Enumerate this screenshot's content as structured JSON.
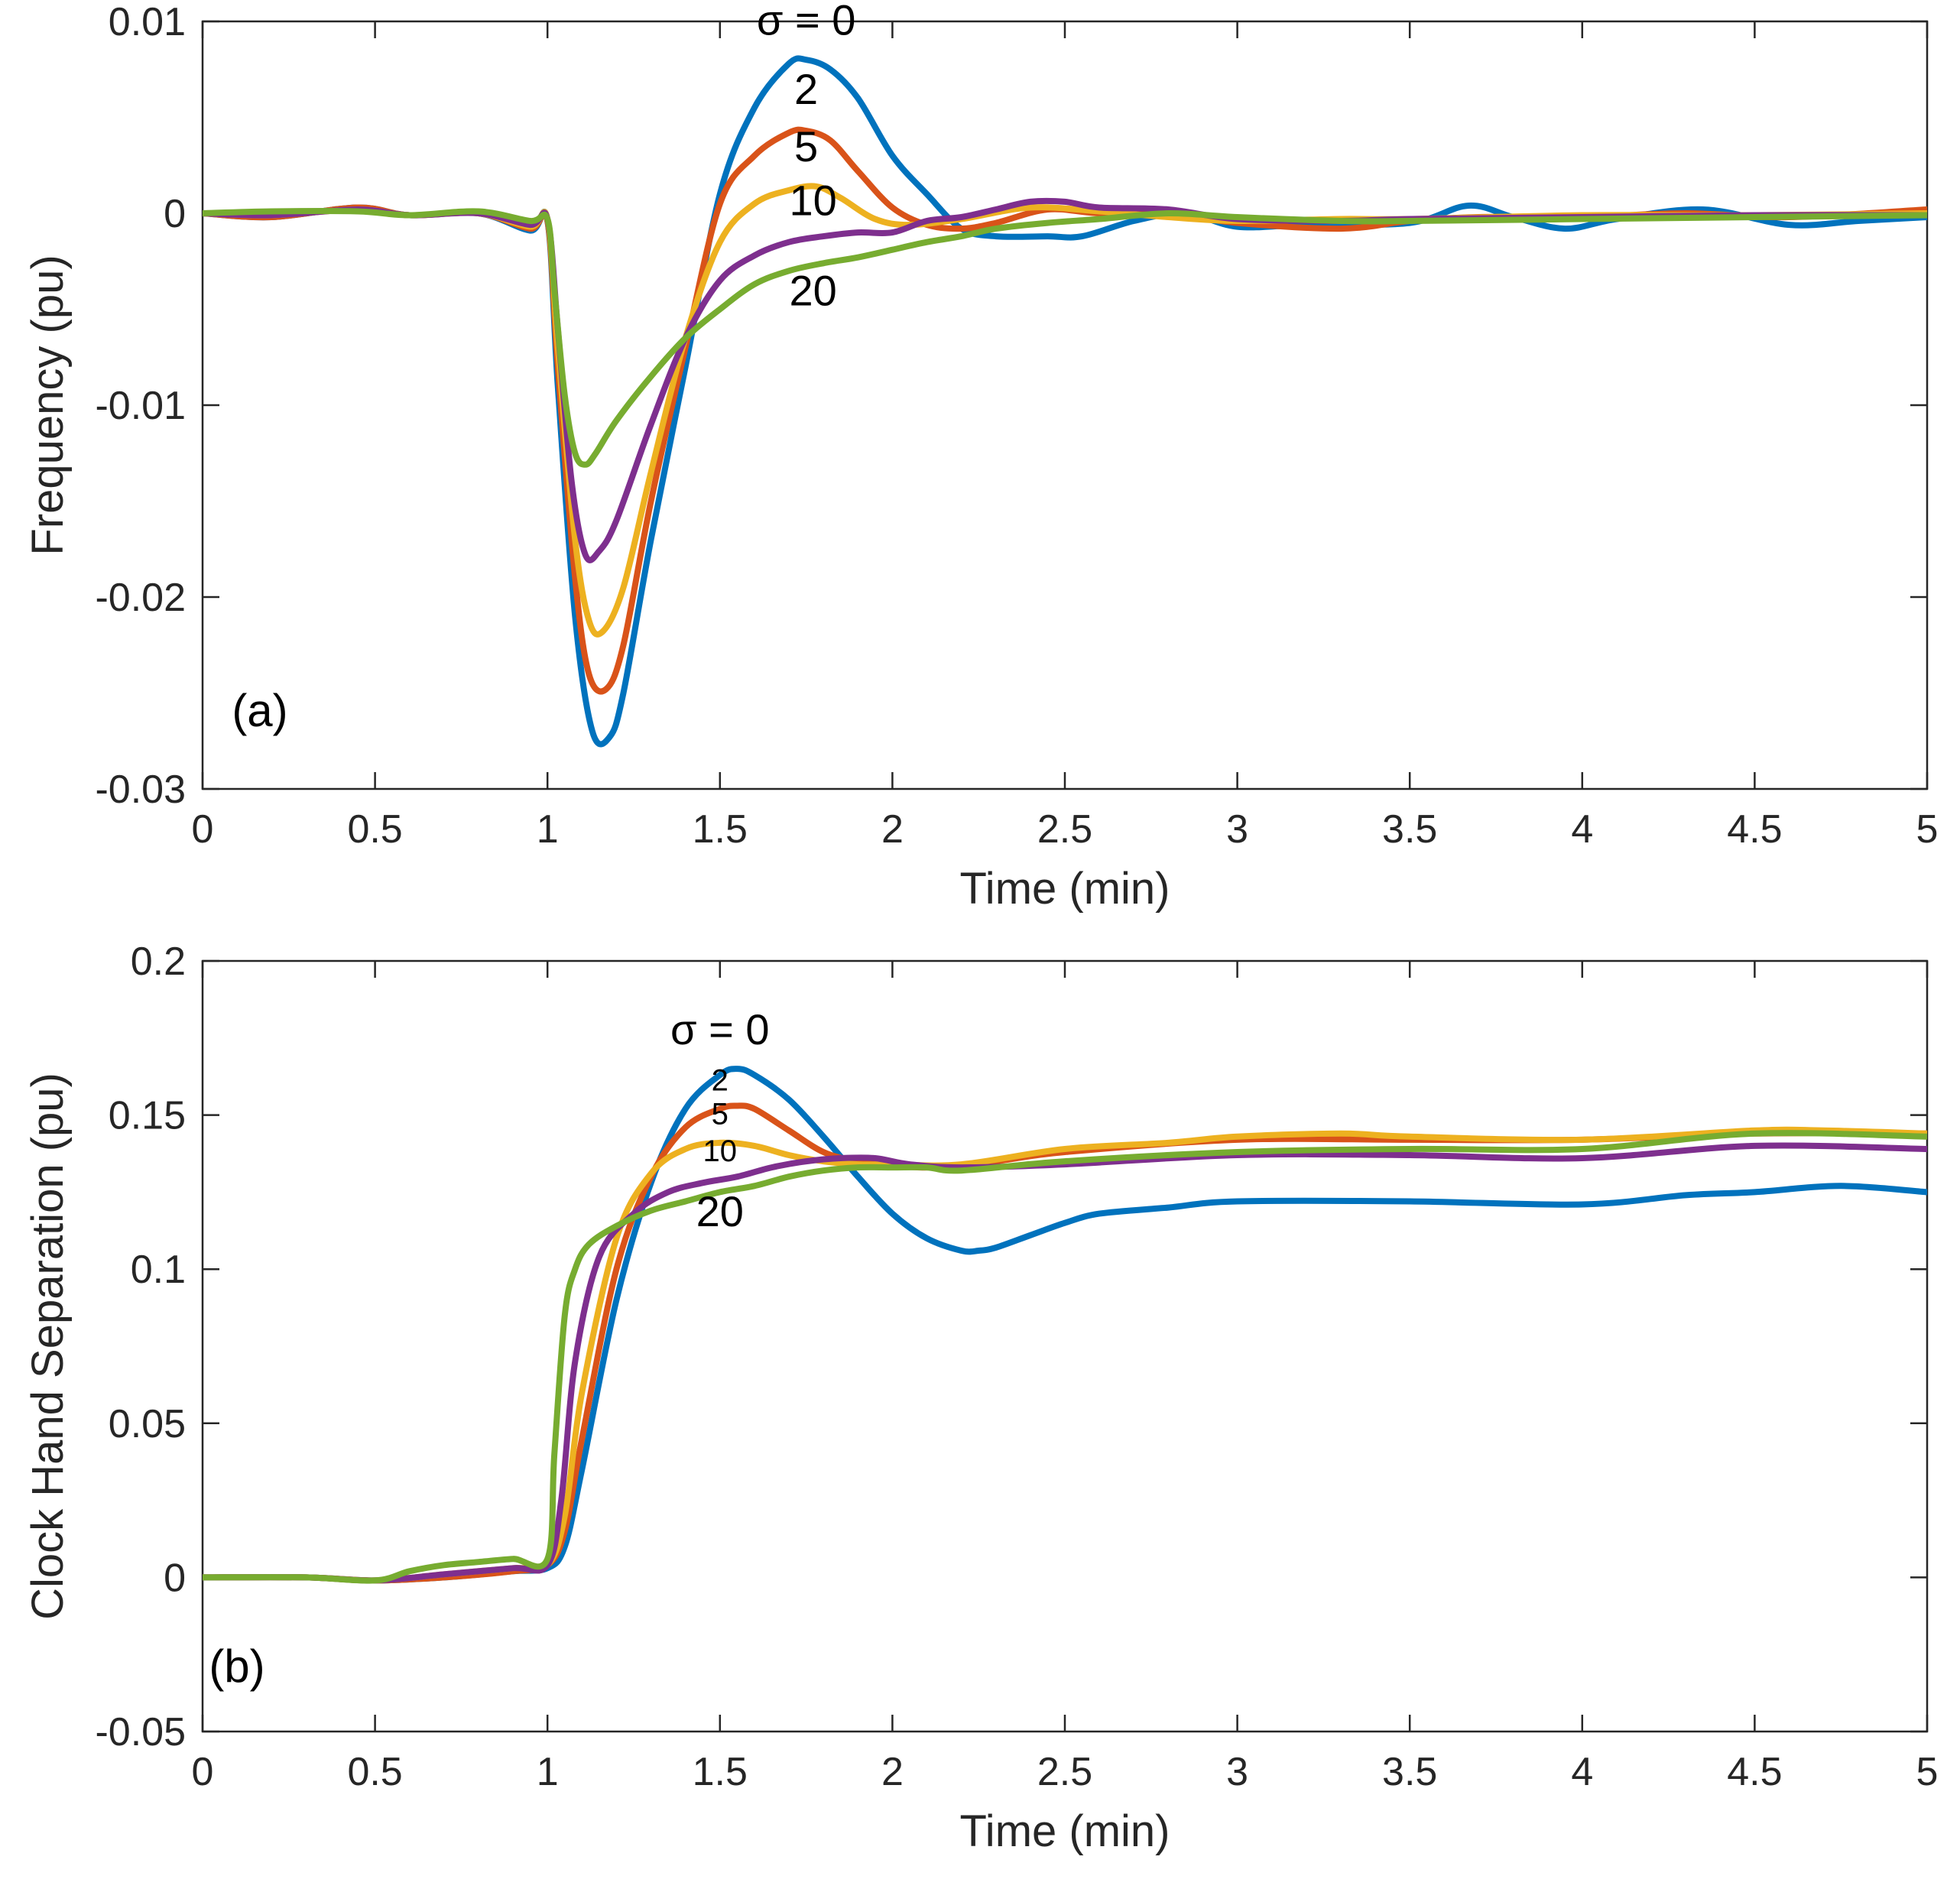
{
  "colors": {
    "axes": "#262626",
    "sigma_0": "#0072BD",
    "sigma_2": "#D95319",
    "sigma_5": "#EDB120",
    "sigma_10": "#7E2F8E",
    "sigma_20": "#77AC30"
  },
  "chart_data": [
    {
      "type": "line",
      "panel": "(a)",
      "title": "",
      "xlabel": "Time (min)",
      "ylabel": "Frequency (pu)",
      "xlim": [
        0,
        5
      ],
      "ylim": [
        -0.03,
        0.01
      ],
      "xticks": [
        "0",
        "0.5",
        "1",
        "1.5",
        "2",
        "2.5",
        "3",
        "3.5",
        "4",
        "4.5",
        "5"
      ],
      "yticks": [
        "-0.03",
        "-0.02",
        "-0.01",
        "0",
        "0.01"
      ],
      "grid": false,
      "curve_labels": [
        {
          "text": "σ = 0",
          "x": 1.75,
          "y": 0.0093
        },
        {
          "text": "2",
          "x": 1.75,
          "y": 0.0057
        },
        {
          "text": "5",
          "x": 1.75,
          "y": 0.0027
        },
        {
          "text": "10",
          "x": 1.77,
          "y": -0.0001
        },
        {
          "text": "20",
          "x": 1.77,
          "y": -0.0048
        }
      ],
      "series": [
        {
          "name": "σ = 0",
          "color_key": "sigma_0",
          "x": [
            0,
            0.2,
            0.45,
            0.6,
            0.8,
            0.95,
            1.0,
            1.03,
            1.08,
            1.13,
            1.18,
            1.22,
            1.3,
            1.4,
            1.5,
            1.6,
            1.7,
            1.75,
            1.82,
            1.9,
            2.0,
            2.1,
            2.2,
            2.3,
            2.45,
            2.55,
            2.7,
            2.85,
            3.0,
            3.2,
            3.5,
            3.67,
            3.8,
            3.95,
            4.1,
            4.35,
            4.6,
            4.8,
            5.0
          ],
          "y": [
            0,
            -0.0002,
            0.0003,
            -0.0001,
            0,
            -0.0009,
            -0.0004,
            -0.009,
            -0.021,
            -0.027,
            -0.0273,
            -0.025,
            -0.017,
            -0.008,
            0.001,
            0.0055,
            0.0078,
            0.008,
            0.0075,
            0.006,
            0.003,
            0.001,
            -0.0008,
            -0.0012,
            -0.0012,
            -0.0012,
            -0.0004,
            0,
            -0.0007,
            -0.0006,
            -0.0005,
            0.0004,
            -0.0002,
            -0.0008,
            -0.0003,
            0.0002,
            -0.0006,
            -0.0004,
            -0.0002
          ]
        },
        {
          "name": "σ = 2",
          "color_key": "sigma_2",
          "x": [
            0,
            0.2,
            0.45,
            0.6,
            0.8,
            0.95,
            1.0,
            1.03,
            1.08,
            1.12,
            1.17,
            1.22,
            1.3,
            1.4,
            1.5,
            1.6,
            1.7,
            1.75,
            1.82,
            1.9,
            2.0,
            2.1,
            2.2,
            2.3,
            2.45,
            2.6,
            2.8,
            3.0,
            3.3,
            3.5,
            3.7,
            4.0,
            4.3,
            4.6,
            5.0
          ],
          "y": [
            0,
            -0.0002,
            0.0003,
            -0.0001,
            0,
            -0.0008,
            -0.0004,
            -0.008,
            -0.019,
            -0.024,
            -0.0248,
            -0.0225,
            -0.015,
            -0.007,
            0.0005,
            0.003,
            0.0042,
            0.0043,
            0.0038,
            0.0022,
            0.0003,
            -0.0006,
            -0.0008,
            -0.0005,
            0.0002,
            0,
            0,
            -0.0005,
            -0.0008,
            -0.0004,
            -0.0002,
            -0.0002,
            0,
            -0.0002,
            0.0002
          ]
        },
        {
          "name": "σ = 5",
          "color_key": "sigma_5",
          "x": [
            0,
            0.2,
            0.45,
            0.6,
            0.8,
            0.95,
            1.0,
            1.03,
            1.08,
            1.12,
            1.16,
            1.22,
            1.3,
            1.4,
            1.5,
            1.6,
            1.7,
            1.78,
            1.85,
            1.95,
            2.05,
            2.2,
            2.4,
            2.6,
            2.8,
            3.0,
            3.3,
            3.5,
            4.0,
            4.5,
            5.0
          ],
          "y": [
            0,
            -0.0001,
            0.0002,
            -0.0001,
            0,
            -0.0007,
            -0.0003,
            -0.007,
            -0.017,
            -0.0212,
            -0.0218,
            -0.0195,
            -0.0135,
            -0.0065,
            -0.0015,
            0.0005,
            0.0012,
            0.0014,
            0.0008,
            -0.0003,
            -0.0006,
            -0.0003,
            0.0003,
            0.0001,
            -0.0002,
            -0.0004,
            -0.0003,
            -0.0003,
            -0.0001,
            -0.0001,
            0
          ]
        },
        {
          "name": "σ = 10",
          "color_key": "sigma_10",
          "x": [
            0,
            0.2,
            0.45,
            0.6,
            0.8,
            0.95,
            1.0,
            1.03,
            1.07,
            1.11,
            1.15,
            1.2,
            1.3,
            1.4,
            1.5,
            1.6,
            1.7,
            1.8,
            1.9,
            2.0,
            2.1,
            2.2,
            2.3,
            2.4,
            2.5,
            2.6,
            2.8,
            3.0,
            3.3,
            3.5,
            4.0,
            4.5,
            5.0
          ],
          "y": [
            0,
            -0.0001,
            0.0002,
            -0.0001,
            0,
            -0.0006,
            -0.0003,
            -0.006,
            -0.014,
            -0.0178,
            -0.0176,
            -0.016,
            -0.011,
            -0.0065,
            -0.0035,
            -0.0022,
            -0.0015,
            -0.0012,
            -0.001,
            -0.001,
            -0.0004,
            -0.0002,
            0.0002,
            0.0006,
            0.0006,
            0.0003,
            0.0002,
            -0.0003,
            -0.0004,
            -0.0003,
            -0.0002,
            -0.0001,
            -0.0001
          ]
        },
        {
          "name": "σ = 20",
          "color_key": "sigma_20",
          "x": [
            0,
            0.2,
            0.45,
            0.6,
            0.8,
            0.95,
            1.0,
            1.02,
            1.05,
            1.08,
            1.11,
            1.14,
            1.2,
            1.3,
            1.4,
            1.5,
            1.6,
            1.7,
            1.8,
            1.9,
            2.0,
            2.1,
            2.2,
            2.3,
            2.45,
            2.6,
            2.8,
            3.0,
            3.3,
            3.5,
            4.0,
            4.5,
            5.0
          ],
          "y": [
            0,
            0.0001,
            0.0001,
            -0.0001,
            0.0001,
            -0.0004,
            -0.0003,
            -0.004,
            -0.0095,
            -0.0125,
            -0.0131,
            -0.0125,
            -0.0108,
            -0.0085,
            -0.0065,
            -0.005,
            -0.0037,
            -0.003,
            -0.0026,
            -0.0023,
            -0.0019,
            -0.0015,
            -0.0012,
            -0.0008,
            -0.0005,
            -0.0003,
            0,
            -0.0002,
            -0.0004,
            -0.0004,
            -0.0003,
            -0.0002,
            -0.0001
          ]
        }
      ]
    },
    {
      "type": "line",
      "panel": "(b)",
      "title": "",
      "xlabel": "Time (min)",
      "ylabel": "Clock Hand Separation (pu)",
      "xlim": [
        0,
        5
      ],
      "ylim": [
        -0.05,
        0.2
      ],
      "xticks": [
        "0",
        "0.5",
        "1",
        "1.5",
        "2",
        "2.5",
        "3",
        "3.5",
        "4",
        "4.5",
        "5"
      ],
      "yticks": [
        "-0.05",
        "0",
        "0.05",
        "0.1",
        "0.15",
        "0.2"
      ],
      "grid": false,
      "curve_labels": [
        {
          "text": "σ = 0",
          "x": 1.5,
          "y": 0.173,
          "size": "lg"
        },
        {
          "text": "2",
          "x": 1.5,
          "y": 0.158,
          "size": "sm"
        },
        {
          "text": "5",
          "x": 1.5,
          "y": 0.147,
          "size": "sm"
        },
        {
          "text": "10",
          "x": 1.5,
          "y": 0.135,
          "size": "sm"
        },
        {
          "text": "20",
          "x": 1.5,
          "y": 0.114,
          "size": "lg"
        }
      ],
      "series": [
        {
          "name": "σ = 0",
          "color_key": "sigma_0",
          "x": [
            0,
            0.3,
            0.5,
            0.7,
            0.9,
            1.0,
            1.05,
            1.1,
            1.2,
            1.3,
            1.4,
            1.5,
            1.55,
            1.6,
            1.7,
            1.8,
            1.9,
            2.0,
            2.1,
            2.2,
            2.25,
            2.3,
            2.4,
            2.5,
            2.6,
            2.8,
            3.0,
            3.5,
            4.0,
            4.3,
            4.5,
            4.75,
            5.0
          ],
          "y": [
            0,
            0,
            -0.001,
            0,
            0.002,
            0.003,
            0.01,
            0.035,
            0.09,
            0.128,
            0.152,
            0.163,
            0.165,
            0.163,
            0.155,
            0.143,
            0.13,
            0.118,
            0.11,
            0.106,
            0.106,
            0.107,
            0.111,
            0.115,
            0.118,
            0.12,
            0.122,
            0.122,
            0.121,
            0.124,
            0.125,
            0.127,
            0.125
          ]
        },
        {
          "name": "σ = 2",
          "color_key": "sigma_2",
          "x": [
            0,
            0.3,
            0.5,
            0.7,
            0.9,
            1.0,
            1.05,
            1.1,
            1.2,
            1.3,
            1.4,
            1.5,
            1.55,
            1.6,
            1.7,
            1.8,
            1.9,
            2.0,
            2.1,
            2.3,
            2.5,
            3.0,
            3.5,
            4.0,
            4.5,
            5.0
          ],
          "y": [
            0,
            0,
            -0.001,
            0,
            0.002,
            0.004,
            0.015,
            0.045,
            0.1,
            0.13,
            0.146,
            0.152,
            0.153,
            0.152,
            0.145,
            0.138,
            0.135,
            0.134,
            0.133,
            0.135,
            0.138,
            0.142,
            0.142,
            0.142,
            0.144,
            0.144
          ]
        },
        {
          "name": "σ = 5",
          "color_key": "sigma_5",
          "x": [
            0,
            0.3,
            0.5,
            0.7,
            0.9,
            1.0,
            1.05,
            1.1,
            1.2,
            1.3,
            1.4,
            1.5,
            1.6,
            1.7,
            1.8,
            1.9,
            2.0,
            2.2,
            2.5,
            2.8,
            3.0,
            3.3,
            3.5,
            4.0,
            4.5,
            4.7,
            5.0
          ],
          "y": [
            0,
            0,
            -0.001,
            0.001,
            0.003,
            0.004,
            0.02,
            0.06,
            0.11,
            0.131,
            0.139,
            0.141,
            0.14,
            0.137,
            0.135,
            0.134,
            0.134,
            0.134,
            0.139,
            0.141,
            0.143,
            0.144,
            0.143,
            0.142,
            0.145,
            0.145,
            0.144
          ]
        },
        {
          "name": "σ = 10",
          "color_key": "sigma_10",
          "x": [
            0,
            0.3,
            0.5,
            0.7,
            0.9,
            1.0,
            1.04,
            1.08,
            1.15,
            1.25,
            1.35,
            1.45,
            1.55,
            1.65,
            1.75,
            1.85,
            1.95,
            2.05,
            2.2,
            2.5,
            3.0,
            3.5,
            4.0,
            4.5,
            5.0
          ],
          "y": [
            0,
            0,
            -0.001,
            0.001,
            0.003,
            0.004,
            0.025,
            0.07,
            0.104,
            0.118,
            0.125,
            0.128,
            0.13,
            0.133,
            0.135,
            0.136,
            0.136,
            0.134,
            0.133,
            0.134,
            0.137,
            0.137,
            0.136,
            0.14,
            0.139
          ]
        },
        {
          "name": "σ = 20",
          "color_key": "sigma_20",
          "x": [
            0,
            0.3,
            0.5,
            0.6,
            0.7,
            0.8,
            0.9,
            1.0,
            1.02,
            1.05,
            1.08,
            1.12,
            1.2,
            1.3,
            1.4,
            1.5,
            1.6,
            1.7,
            1.8,
            1.9,
            2.0,
            2.1,
            2.2,
            2.5,
            3.0,
            3.5,
            4.0,
            4.5,
            5.0
          ],
          "y": [
            0,
            0,
            -0.001,
            0.002,
            0.004,
            0.005,
            0.006,
            0.006,
            0.04,
            0.085,
            0.1,
            0.108,
            0.114,
            0.119,
            0.122,
            0.125,
            0.127,
            0.13,
            0.132,
            0.133,
            0.133,
            0.133,
            0.132,
            0.135,
            0.138,
            0.139,
            0.139,
            0.144,
            0.143
          ]
        }
      ]
    }
  ]
}
